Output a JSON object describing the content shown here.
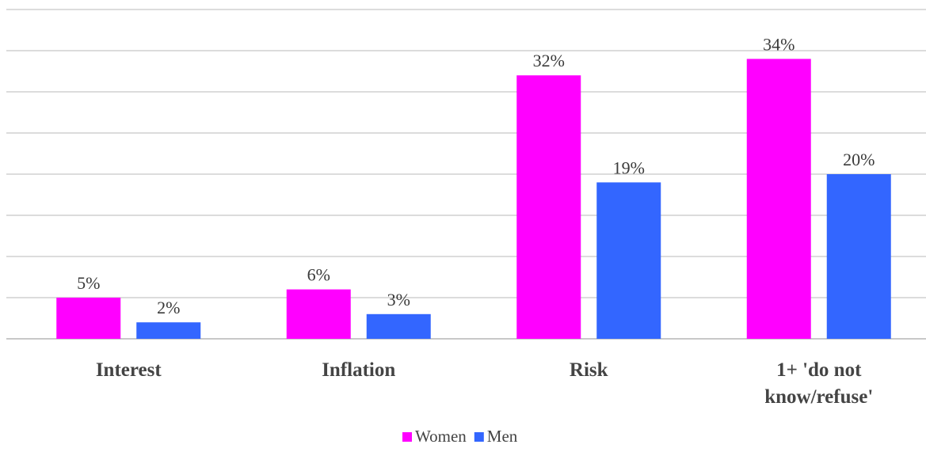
{
  "chart_data": {
    "type": "bar",
    "title": "",
    "xlabel": "",
    "ylabel": "",
    "ylim": [
      0,
      40
    ],
    "grid": true,
    "legend_position": "bottom",
    "categories": [
      "Interest",
      "Inflation",
      "Risk",
      "1+ 'do not know/refuse'"
    ],
    "series": [
      {
        "name": "Women",
        "color": "#ff00ff",
        "values": [
          5,
          6,
          32,
          34
        ],
        "labels": [
          "5%",
          "6%",
          "32%",
          "34%"
        ]
      },
      {
        "name": "Men",
        "color": "#3366ff",
        "values": [
          2,
          3,
          19,
          20
        ],
        "labels": [
          "2%",
          "3%",
          "19%",
          "20%"
        ]
      }
    ]
  }
}
